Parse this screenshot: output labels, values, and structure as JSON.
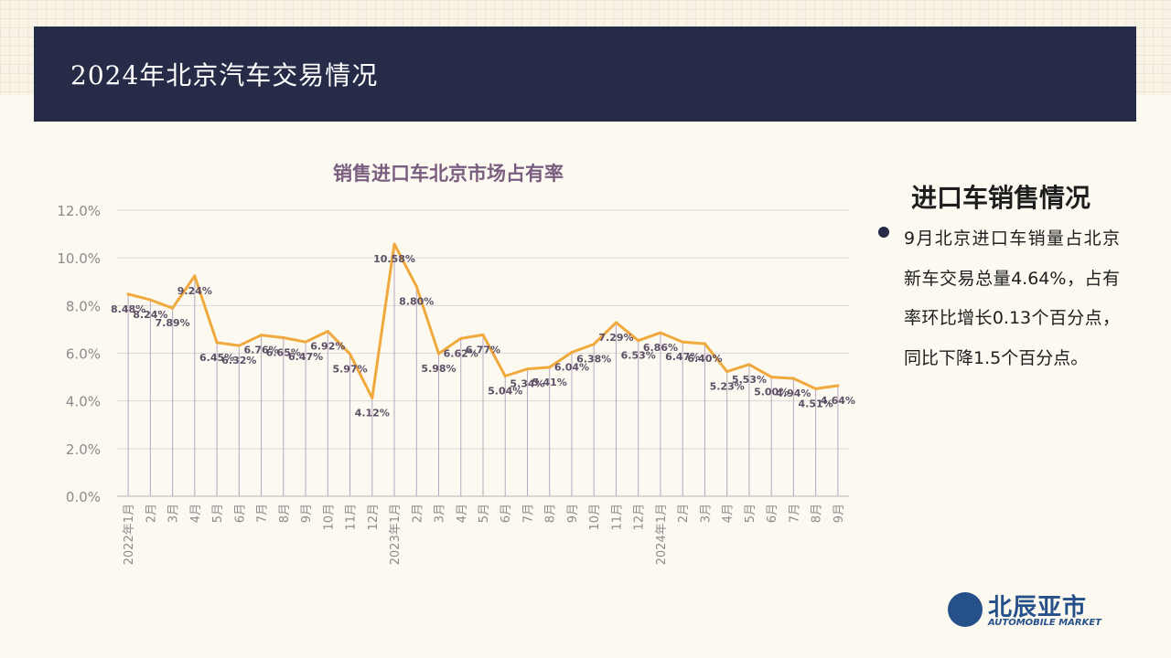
{
  "header": {
    "title": "2024年北京汽车交易情况"
  },
  "side": {
    "title": "进口车销售情况",
    "bullet": "9月北京进口车销量占北京新车交易总量4.64%，占有率环比增长0.13个百分点，同比下降1.5个百分点。"
  },
  "logo": {
    "name": "北辰亚市",
    "sub": "AUTOMOBILE MARKET"
  },
  "colors": {
    "header_bg": "#262b47",
    "line": "#f0a93c",
    "title": "#7a5e80",
    "logo": "#26508a"
  },
  "chart_data": {
    "type": "line",
    "title": "销售进口车北京市场占有率",
    "categories": [
      "2022年1月",
      "2月",
      "3月",
      "4月",
      "5月",
      "6月",
      "7月",
      "8月",
      "9月",
      "10月",
      "11月",
      "12月",
      "2023年1月",
      "2月",
      "3月",
      "4月",
      "5月",
      "6月",
      "7月",
      "8月",
      "9月",
      "10月",
      "11月",
      "12月",
      "2024年1月",
      "2月",
      "3月",
      "4月",
      "5月",
      "6月",
      "7月",
      "8月",
      "9月"
    ],
    "values": [
      8.48,
      8.24,
      7.89,
      9.24,
      6.45,
      6.32,
      6.76,
      6.65,
      6.47,
      6.92,
      5.97,
      4.12,
      10.58,
      8.8,
      5.98,
      6.62,
      6.77,
      5.04,
      5.34,
      5.41,
      6.04,
      6.38,
      7.29,
      6.53,
      6.86,
      6.47,
      6.4,
      5.23,
      5.53,
      5.0,
      4.94,
      4.51,
      4.64
    ],
    "data_labels": [
      "8.48%",
      "8.24%",
      "7.89%",
      "9.24%",
      "6.45%",
      "6.32%",
      "6.76%",
      "6.65%",
      "6.47%",
      "6.92%",
      "5.97%",
      "4.12%",
      "10.58%",
      "8.80%",
      "5.98%",
      "6.62%",
      "6.77%",
      "5.04%",
      "5.34%",
      "5.41%",
      "6.04%",
      "6.38%",
      "7.29%",
      "6.53%",
      "6.86%",
      "6.47%",
      "6.40%",
      "5.23%",
      "5.53%",
      "5.00%",
      "4.94%",
      "4.51%",
      "4.64%"
    ],
    "ylim": [
      0,
      12
    ],
    "yticks": [
      "0.0%",
      "2.0%",
      "4.0%",
      "6.0%",
      "8.0%",
      "10.0%",
      "12.0%"
    ],
    "grid": true,
    "drop_lines": true
  }
}
